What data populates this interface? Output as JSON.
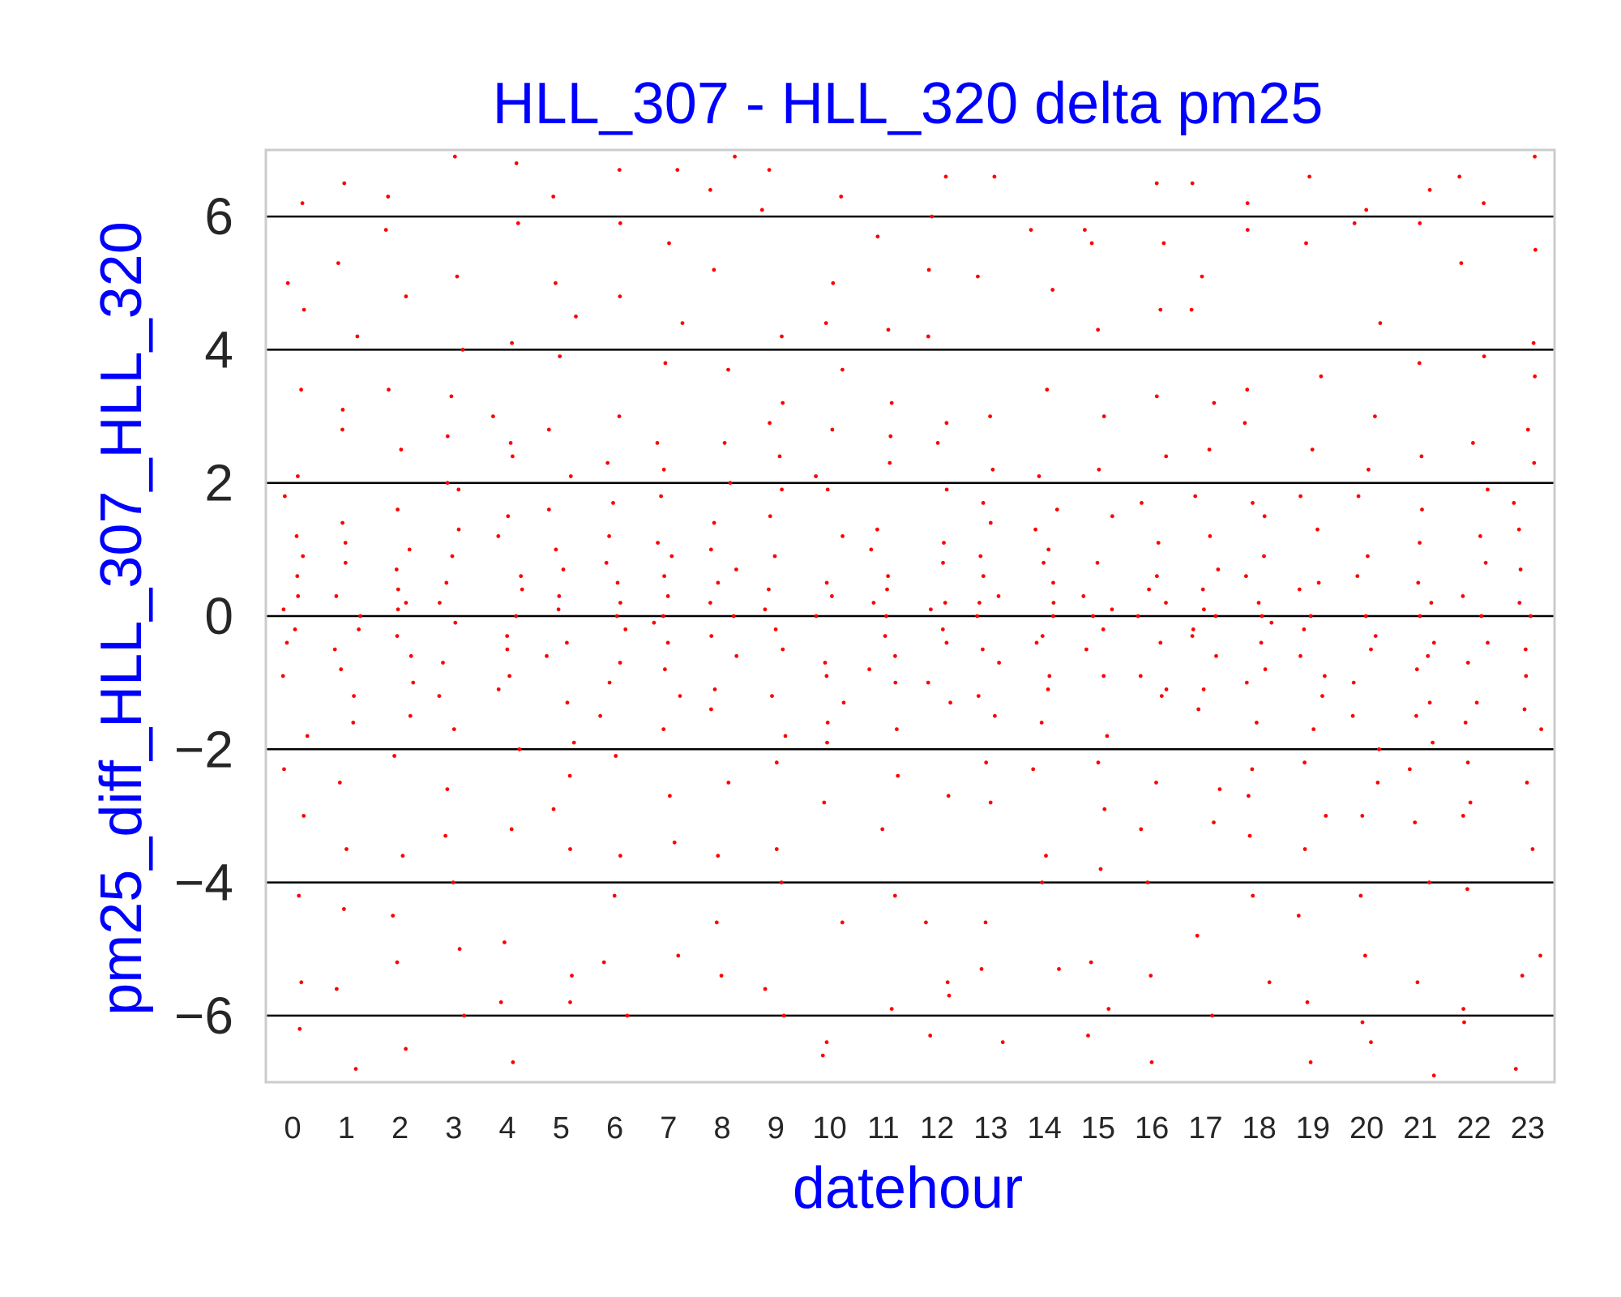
{
  "chart_data": {
    "type": "scatter",
    "title": "HLL_307 - HLL_320 delta pm25",
    "xlabel": "datehour",
    "ylabel": "pm25_diff_HLL_307_HLL_320",
    "categories": [
      "0",
      "1",
      "2",
      "3",
      "4",
      "5",
      "6",
      "7",
      "8",
      "9",
      "10",
      "11",
      "12",
      "13",
      "14",
      "15",
      "16",
      "17",
      "18",
      "19",
      "20",
      "21",
      "22",
      "23"
    ],
    "yticks": [
      -6,
      -4,
      -2,
      0,
      2,
      4,
      6
    ],
    "ytick_labels": [
      "−6",
      "−4",
      "−2",
      "0",
      "2",
      "4",
      "6"
    ],
    "ylim": [
      -7,
      7
    ],
    "grid": "horizontal",
    "point_color": "#ff0000",
    "title_color": "#0000ff",
    "label_color": "#0000ff",
    "series": [
      {
        "values_per_category": [
          [
            0.6,
            -0.4,
            1.2,
            -1.8,
            0.3,
            2.1,
            -0.9,
            4.6,
            -4.2,
            6.2,
            -6.2,
            5.0,
            -5.5,
            0.1,
            -0.2,
            1.8,
            -2.3,
            3.4,
            -3.0,
            0.9
          ],
          [
            -0.5,
            0.8,
            -1.6,
            2.8,
            -2.5,
            1.4,
            -0.2,
            4.2,
            -4.4,
            6.5,
            -6.8,
            -5.6,
            0.3,
            -0.8,
            3.1,
            -3.5,
            0.0,
            1.1,
            -1.2,
            5.3
          ],
          [
            0.4,
            -0.6,
            1.0,
            -2.1,
            2.5,
            -1.5,
            0.2,
            3.4,
            -3.6,
            6.3,
            -6.5,
            -5.2,
            4.8,
            -4.5,
            0.7,
            -0.3,
            1.6,
            -1.0,
            0.1,
            5.8
          ],
          [
            0.5,
            -0.7,
            1.3,
            -1.2,
            2.0,
            -2.6,
            3.3,
            -3.3,
            4.0,
            -4.0,
            6.9,
            -6.0,
            5.1,
            -5.0,
            0.2,
            -0.1,
            0.9,
            -1.7,
            1.9,
            2.7
          ],
          [
            -0.3,
            0.6,
            -1.1,
            1.5,
            -2.0,
            2.6,
            3.0,
            -3.2,
            4.1,
            -4.9,
            6.8,
            -6.7,
            -5.8,
            0.0,
            0.4,
            -0.5,
            1.2,
            -0.9,
            2.4,
            5.9
          ],
          [
            0.7,
            -0.4,
            1.6,
            -1.9,
            2.8,
            -2.9,
            3.9,
            -3.5,
            5.0,
            -5.4,
            6.3,
            -5.8,
            0.1,
            0.3,
            -0.6,
            1.0,
            -1.3,
            2.1,
            -2.4,
            4.5
          ],
          [
            0.5,
            -0.2,
            1.2,
            -1.5,
            2.3,
            -2.1,
            3.0,
            -3.6,
            4.8,
            -4.2,
            6.7,
            -6.0,
            5.9,
            -5.2,
            0.0,
            0.8,
            -0.7,
            1.7,
            -1.0,
            0.2
          ],
          [
            0.6,
            -0.8,
            1.8,
            -1.7,
            2.6,
            -2.7,
            4.4,
            -3.4,
            5.6,
            -5.1,
            6.7,
            0.0,
            0.3,
            -0.4,
            1.1,
            -1.2,
            2.2,
            -0.1,
            0.9,
            3.8
          ],
          [
            0.2,
            -0.3,
            1.0,
            -1.4,
            2.0,
            -2.5,
            3.7,
            -3.6,
            5.2,
            -5.4,
            6.9,
            -4.6,
            6.4,
            0.0,
            0.5,
            -0.6,
            1.4,
            -1.1,
            2.6,
            0.7
          ],
          [
            0.4,
            -0.5,
            1.5,
            -1.8,
            2.9,
            -2.2,
            3.2,
            -3.5,
            4.2,
            -4.0,
            6.7,
            -5.6,
            -6.0,
            6.1,
            0.1,
            -0.2,
            0.9,
            -1.2,
            1.9,
            2.4
          ],
          [
            0.3,
            -0.7,
            1.9,
            -1.6,
            2.8,
            -2.8,
            3.7,
            -4.6,
            5.0,
            -6.4,
            6.3,
            -6.6,
            0.0,
            0.5,
            -0.9,
            1.2,
            -1.3,
            2.1,
            -1.9,
            4.4
          ],
          [
            0.2,
            -0.6,
            1.3,
            -1.7,
            2.3,
            -2.4,
            3.2,
            -3.2,
            4.3,
            -4.2,
            5.7,
            -5.9,
            0.0,
            0.4,
            -0.3,
            1.0,
            -1.0,
            2.7,
            -0.8,
            0.6
          ],
          [
            0.1,
            -0.4,
            1.1,
            -1.3,
            2.6,
            -2.7,
            4.2,
            -4.6,
            5.2,
            -5.7,
            6.6,
            -6.3,
            6.0,
            -5.5,
            0.2,
            -0.2,
            0.8,
            -1.0,
            1.9,
            2.9
          ],
          [
            0.3,
            -0.5,
            0.9,
            -1.2,
            1.7,
            -2.2,
            3.0,
            -2.8,
            5.1,
            -4.6,
            6.6,
            -6.4,
            -5.3,
            0.0,
            0.6,
            -0.7,
            1.4,
            -1.5,
            2.2,
            0.2
          ],
          [
            0.2,
            -0.3,
            1.0,
            -1.1,
            2.1,
            -2.3,
            3.4,
            -3.6,
            4.9,
            -4.0,
            5.8,
            -5.3,
            0.0,
            0.5,
            -0.4,
            1.3,
            -0.9,
            1.6,
            -1.6,
            0.8
          ],
          [
            0.1,
            -0.2,
            0.8,
            -0.9,
            2.2,
            -2.2,
            3.0,
            -2.9,
            5.6,
            -5.2,
            5.8,
            -6.3,
            -5.9,
            4.3,
            0.0,
            0.3,
            -0.5,
            1.5,
            -1.8,
            -3.8
          ],
          [
            0.2,
            -0.4,
            1.1,
            -1.2,
            2.4,
            -2.5,
            3.3,
            -3.2,
            4.6,
            -4.0,
            6.5,
            -6.7,
            5.6,
            -5.4,
            0.0,
            0.6,
            -0.9,
            1.7,
            -1.1,
            0.4
          ],
          [
            0.1,
            -0.3,
            0.7,
            -1.1,
            2.5,
            -2.6,
            3.2,
            -3.1,
            5.1,
            -4.8,
            -6.0,
            6.5,
            4.6,
            0.0,
            0.4,
            -0.6,
            1.2,
            -1.4,
            1.8,
            -0.2
          ],
          [
            0.0,
            -0.4,
            0.9,
            -1.0,
            1.7,
            -2.3,
            3.4,
            -3.3,
            5.8,
            -4.2,
            -5.5,
            6.2,
            0.2,
            -0.1,
            0.6,
            -0.8,
            1.5,
            -1.6,
            2.9,
            -2.7
          ],
          [
            -0.2,
            0.5,
            -1.2,
            1.3,
            -2.2,
            2.5,
            -3.5,
            3.6,
            -4.5,
            5.6,
            -5.8,
            6.6,
            -6.7,
            0.0,
            -0.6,
            0.4,
            -0.9,
            1.8,
            -1.7,
            -3.0
          ],
          [
            -0.3,
            0.6,
            -1.0,
            1.8,
            -2.0,
            3.0,
            -3.0,
            4.4,
            -4.2,
            5.9,
            -6.1,
            -6.4,
            6.1,
            -5.1,
            0.0,
            -0.5,
            0.9,
            -1.5,
            2.2,
            -2.5
          ],
          [
            -0.6,
            0.2,
            -1.5,
            1.1,
            -2.3,
            2.4,
            -3.1,
            3.8,
            -4.0,
            5.9,
            -5.5,
            6.4,
            -6.9,
            0.0,
            -0.8,
            0.5,
            -1.3,
            1.6,
            -1.9,
            -0.4
          ],
          [
            -0.4,
            0.3,
            -1.3,
            1.2,
            -2.2,
            2.6,
            -3.0,
            3.9,
            -4.1,
            5.3,
            -5.9,
            6.2,
            -6.1,
            6.6,
            0.0,
            -0.7,
            0.8,
            -1.6,
            1.9,
            -2.8
          ],
          [
            0.2,
            -0.5,
            1.3,
            -1.4,
            2.3,
            -2.5,
            3.6,
            -3.5,
            4.1,
            -5.1,
            5.5,
            -5.4,
            6.9,
            -6.8,
            0.0,
            0.7,
            -0.9,
            1.7,
            -1.7,
            2.8
          ]
        ]
      }
    ]
  }
}
